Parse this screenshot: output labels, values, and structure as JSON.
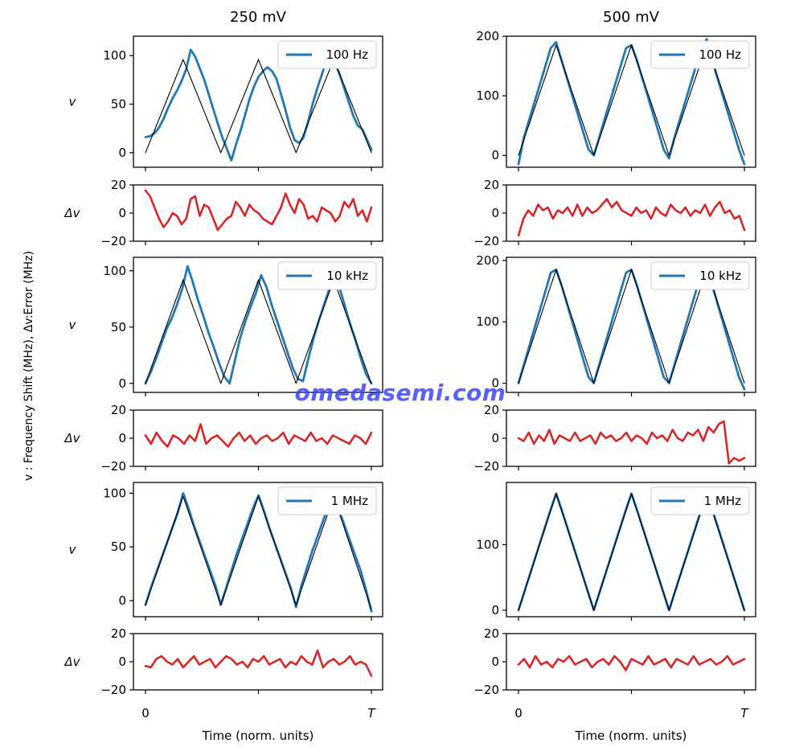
{
  "figure": {
    "ylabel": "v : Frequency Shift  (MHz), Δv:Error (MHz)",
    "watermark": "omedasemi.com",
    "column_titles": [
      "250 mV",
      "500 mV"
    ],
    "xlabel": "Time (norm. units)"
  },
  "chart_data": [
    {
      "id": "250mV-100Hz-main",
      "type": "line",
      "column_title": "250 mV",
      "legend": "100 Hz",
      "ylabel": "v",
      "ylim": [
        -15,
        120
      ],
      "yticks": [
        0,
        50,
        100
      ],
      "xlim": [
        0,
        1
      ],
      "series": [
        {
          "color": "#1f77b4",
          "values": [
            16,
            17,
            20,
            26,
            35,
            46,
            56,
            64,
            74,
            86,
            106,
            99,
            87,
            75,
            60,
            45,
            30,
            16,
            4,
            -8,
            8,
            22,
            38,
            55,
            68,
            78,
            84,
            88,
            84,
            76,
            60,
            44,
            26,
            13,
            10,
            16,
            32,
            50,
            66,
            80,
            95,
            100,
            92,
            80,
            66,
            52,
            38,
            28,
            24,
            14,
            3
          ]
        },
        {
          "color": "#000000",
          "values": [
            0,
            96,
            0,
            96,
            0,
            96,
            0
          ]
        }
      ]
    },
    {
      "id": "250mV-100Hz-err",
      "type": "line",
      "ylabel": "Δv",
      "ylim": [
        -20,
        20
      ],
      "yticks": [
        -20,
        0,
        20
      ],
      "xlim": [
        0,
        1
      ],
      "series": [
        {
          "color": "#d62728",
          "values": [
            16,
            12,
            4,
            -4,
            -10,
            -6,
            0,
            -2,
            -8,
            -4,
            10,
            12,
            -2,
            6,
            4,
            -4,
            -12,
            -8,
            -4,
            -2,
            8,
            4,
            -2,
            6,
            2,
            0,
            -4,
            -6,
            -8,
            -2,
            4,
            14,
            6,
            0,
            10,
            6,
            -4,
            -2,
            -6,
            4,
            2,
            0,
            -6,
            -2,
            8,
            4,
            10,
            -2,
            2,
            -6,
            4
          ]
        }
      ]
    },
    {
      "id": "250mV-10kHz-main",
      "type": "line",
      "legend": "10 kHz",
      "ylabel": "v",
      "ylim": [
        -8,
        112
      ],
      "yticks": [
        0,
        50,
        100
      ],
      "xlim": [
        0,
        1
      ],
      "series": [
        {
          "color": "#1f77b4",
          "values": [
            0,
            10,
            22,
            35,
            48,
            58,
            70,
            84,
            104,
            90,
            74,
            60,
            45,
            32,
            18,
            6,
            0,
            20,
            40,
            55,
            68,
            80,
            96,
            86,
            70,
            56,
            42,
            28,
            14,
            4,
            2,
            22,
            40,
            56,
            70,
            84,
            100,
            84,
            68,
            52,
            38,
            22,
            8,
            0
          ]
        },
        {
          "color": "#000000",
          "values": [
            0,
            92,
            0,
            92,
            0,
            92,
            0
          ]
        }
      ]
    },
    {
      "id": "250mV-10kHz-err",
      "type": "line",
      "ylabel": "Δv",
      "ylim": [
        -20,
        20
      ],
      "yticks": [
        -20,
        0,
        20
      ],
      "xlim": [
        0,
        1
      ],
      "series": [
        {
          "color": "#d62728",
          "values": [
            2,
            -4,
            4,
            -2,
            -6,
            2,
            0,
            -4,
            2,
            -2,
            10,
            -4,
            0,
            2,
            -2,
            -6,
            0,
            4,
            -2,
            2,
            -4,
            0,
            2,
            -2,
            0,
            4,
            -4,
            2,
            0,
            -2,
            4,
            -2,
            0,
            -4,
            2,
            0,
            -2,
            -4,
            2,
            0,
            -4,
            4
          ]
        }
      ]
    },
    {
      "id": "250mV-1MHz-main",
      "type": "line",
      "legend": "1 MHz",
      "ylabel": "v",
      "ylim": [
        -15,
        110
      ],
      "yticks": [
        0,
        50,
        100
      ],
      "xlim": [
        0,
        1
      ],
      "series": [
        {
          "color": "#1f77b4",
          "values": [
            -4,
            12,
            26,
            40,
            54,
            68,
            82,
            100,
            86,
            70,
            56,
            42,
            28,
            14,
            -4,
            12,
            28,
            44,
            58,
            72,
            86,
            98,
            84,
            68,
            54,
            40,
            26,
            12,
            -6,
            14,
            30,
            46,
            60,
            74,
            88,
            100,
            84,
            70,
            56,
            42,
            28,
            10,
            -10
          ]
        },
        {
          "color": "#000000",
          "values": [
            -4,
            97,
            -4,
            97,
            -4,
            97,
            -8
          ]
        }
      ]
    },
    {
      "id": "250mV-1MHz-err",
      "type": "line",
      "ylabel": "Δv",
      "ylim": [
        -20,
        20
      ],
      "yticks": [
        -20,
        0,
        20
      ],
      "xlim": [
        0,
        1
      ],
      "series": [
        {
          "color": "#d62728",
          "values": [
            -3,
            -4,
            2,
            4,
            0,
            -2,
            2,
            -4,
            0,
            4,
            -2,
            0,
            2,
            -4,
            0,
            4,
            2,
            -2,
            0,
            -4,
            2,
            0,
            4,
            -2,
            0,
            2,
            -4,
            0,
            -2,
            4,
            0,
            -2,
            8,
            -4,
            0,
            2,
            -2,
            0,
            4,
            -2,
            0,
            -2,
            -10
          ]
        }
      ]
    },
    {
      "id": "500mV-100Hz-main",
      "type": "line",
      "column_title": "500 mV",
      "legend": "100 Hz",
      "ylabel": "",
      "ylim": [
        -20,
        200
      ],
      "yticks": [
        0,
        100,
        200
      ],
      "xlim": [
        0,
        1
      ],
      "series": [
        {
          "color": "#1f77b4",
          "values": [
            -15,
            30,
            60,
            90,
            120,
            150,
            180,
            190,
            160,
            130,
            100,
            70,
            40,
            10,
            0,
            30,
            60,
            90,
            120,
            150,
            180,
            185,
            160,
            130,
            100,
            70,
            40,
            10,
            -5,
            30,
            60,
            90,
            120,
            150,
            180,
            195,
            160,
            130,
            100,
            70,
            40,
            10,
            -15
          ]
        },
        {
          "color": "#000000",
          "values": [
            0,
            185,
            0,
            185,
            0,
            185,
            0
          ]
        }
      ]
    },
    {
      "id": "500mV-100Hz-err",
      "type": "line",
      "ylabel": "",
      "ylim": [
        -20,
        20
      ],
      "yticks": [
        -20,
        0,
        20
      ],
      "xlim": [
        0,
        1
      ],
      "series": [
        {
          "color": "#d62728",
          "values": [
            -16,
            -4,
            2,
            -2,
            6,
            2,
            4,
            -4,
            2,
            0,
            4,
            -2,
            6,
            -2,
            4,
            0,
            2,
            6,
            10,
            4,
            8,
            2,
            0,
            -2,
            4,
            0,
            2,
            -4,
            4,
            0,
            -2,
            6,
            2,
            0,
            4,
            -2,
            2,
            0,
            6,
            -2,
            4,
            8,
            0,
            2,
            -4,
            -2,
            -12
          ]
        }
      ]
    },
    {
      "id": "500mV-10kHz-main",
      "type": "line",
      "legend": "10 kHz",
      "ylabel": "",
      "ylim": [
        -15,
        205
      ],
      "yticks": [
        0,
        100,
        200
      ],
      "xlim": [
        0,
        1
      ],
      "series": [
        {
          "color": "#1f77b4",
          "values": [
            0,
            30,
            60,
            90,
            120,
            150,
            180,
            185,
            160,
            130,
            100,
            70,
            40,
            10,
            0,
            30,
            60,
            90,
            120,
            150,
            180,
            185,
            160,
            130,
            100,
            70,
            40,
            10,
            0,
            30,
            60,
            90,
            120,
            150,
            180,
            195,
            160,
            130,
            100,
            70,
            40,
            10,
            -10
          ]
        },
        {
          "color": "#000000",
          "values": [
            0,
            185,
            0,
            185,
            0,
            185,
            0
          ]
        }
      ]
    },
    {
      "id": "500mV-10kHz-err",
      "type": "line",
      "ylabel": "",
      "ylim": [
        -20,
        20
      ],
      "yticks": [
        -20,
        0,
        20
      ],
      "xlim": [
        0,
        1
      ],
      "series": [
        {
          "color": "#d62728",
          "values": [
            0,
            -2,
            4,
            -4,
            2,
            -2,
            6,
            -4,
            2,
            0,
            -2,
            4,
            -2,
            0,
            2,
            -4,
            4,
            0,
            2,
            -2,
            0,
            4,
            -2,
            2,
            0,
            -4,
            4,
            0,
            2,
            -2,
            6,
            0,
            -2,
            4,
            2,
            6,
            -2,
            8,
            4,
            10,
            12,
            -18,
            -14,
            -16,
            -14
          ]
        }
      ]
    },
    {
      "id": "500mV-1MHz-main",
      "type": "line",
      "legend": "1 MHz",
      "ylabel": "",
      "ylim": [
        -10,
        195
      ],
      "yticks": [
        0,
        100
      ],
      "xlim": [
        0,
        1
      ],
      "series": [
        {
          "color": "#1f77b4",
          "values": [
            0,
            30,
            60,
            90,
            120,
            150,
            178,
            150,
            120,
            90,
            60,
            30,
            0,
            30,
            60,
            90,
            120,
            150,
            178,
            150,
            120,
            90,
            60,
            30,
            0,
            30,
            60,
            90,
            120,
            150,
            178,
            150,
            120,
            90,
            60,
            30,
            0
          ]
        },
        {
          "color": "#000000",
          "values": [
            0,
            178,
            0,
            178,
            0,
            178,
            0
          ]
        }
      ]
    },
    {
      "id": "500mV-1MHz-err",
      "type": "line",
      "ylabel": "",
      "ylim": [
        -20,
        20
      ],
      "yticks": [
        -20,
        0,
        20
      ],
      "xlim": [
        0,
        1
      ],
      "xtick_labels": [
        "0",
        "T"
      ],
      "series": [
        {
          "color": "#d62728",
          "values": [
            -2,
            2,
            -4,
            4,
            -2,
            0,
            -4,
            2,
            0,
            4,
            -2,
            0,
            2,
            -4,
            0,
            2,
            -2,
            4,
            0,
            -6,
            2,
            0,
            -2,
            4,
            -2,
            0,
            2,
            -4,
            2,
            0,
            -2,
            4,
            -2,
            0,
            2,
            -2,
            0,
            4,
            -2,
            0,
            2
          ]
        }
      ]
    }
  ]
}
